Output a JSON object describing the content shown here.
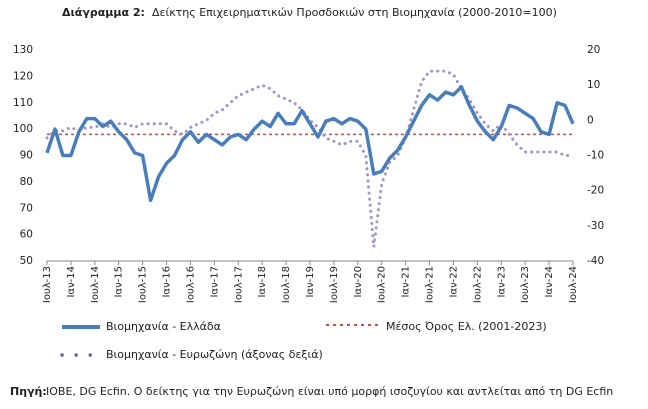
{
  "chart_data": {
    "type": "line",
    "title_label": "Διάγραμμα 2:",
    "title": "Δείκτης Επιχειρηματικών Προσδοκιών στη Βιομηχανία (2000-2010=100)",
    "categories": [
      "Ιουλ-13",
      null,
      null,
      "Ιαν-14",
      null,
      null,
      "Ιουλ-14",
      null,
      null,
      "Ιαν-15",
      null,
      null,
      "Ιουλ-15",
      null,
      null,
      "Ιαν-16",
      null,
      null,
      "Ιουλ-16",
      null,
      null,
      "Ιαν-17",
      null,
      null,
      "Ιουλ-17",
      null,
      null,
      "Ιαν-18",
      null,
      null,
      "Ιουλ-18",
      null,
      null,
      "Ιαν-19",
      null,
      null,
      "Ιουλ-19",
      null,
      null,
      "Ιαν-20",
      null,
      null,
      "Ιουλ-20",
      null,
      null,
      "Ιαν-21",
      null,
      null,
      "Ιουλ-21",
      null,
      null,
      "Ιαν-22",
      null,
      null,
      "Ιουλ-22",
      null,
      null,
      "Ιαν-23",
      null,
      null,
      "Ιουλ-23",
      null,
      null,
      "Ιαν-24",
      null,
      null,
      "Ιουλ-24"
    ],
    "series": [
      {
        "name": "Βιομηχανία  - Ελλάδα",
        "color": "#4a7ebb",
        "axis": "y",
        "values": [
          91,
          100,
          90,
          90,
          99,
          104,
          104,
          101,
          103,
          99,
          96,
          91,
          90,
          73,
          82,
          87,
          90,
          96,
          99,
          95,
          98,
          96,
          94,
          97,
          98,
          96,
          100,
          103,
          101,
          106,
          102,
          102,
          107,
          102,
          97,
          103,
          104,
          102,
          104,
          103,
          100,
          83,
          84,
          89,
          92,
          97,
          103,
          109,
          113,
          111,
          114,
          113,
          116,
          109,
          103,
          99,
          96,
          101,
          109,
          108,
          106,
          104,
          99,
          98,
          110,
          109,
          102
        ]
      },
      {
        "name": "Βιομηχανία - Ευρωζώνη (άξονας δεξιά)",
        "color": "#a593c9",
        "axis": "y2",
        "values": [
          -5,
          -3,
          -3,
          -2,
          -3,
          -2,
          -2,
          -1,
          -2,
          -1,
          -1,
          -2,
          -1,
          -1,
          -1,
          -1,
          -3,
          -4,
          -2,
          -1,
          0,
          2,
          3,
          5,
          7,
          8,
          9,
          10,
          9,
          7,
          6,
          5,
          3,
          0,
          -2,
          -5,
          -6,
          -7,
          -6,
          -6,
          -10,
          -36,
          -18,
          -12,
          -10,
          -5,
          3,
          11,
          14,
          14,
          14,
          13,
          9,
          6,
          2,
          -1,
          -3,
          -1,
          -4,
          -7,
          -9,
          -9,
          -9,
          -9,
          -9,
          -10,
          -10
        ]
      }
    ],
    "reference_line": {
      "name": "Μέσος Όρος Ελ. (2001-2023)",
      "color": "#c0504d",
      "value": 98
    },
    "ylim": [
      50,
      130
    ],
    "yticks": [
      50,
      60,
      70,
      80,
      90,
      100,
      110,
      120,
      130
    ],
    "y2lim": [
      -40,
      20
    ],
    "y2ticks": [
      -40,
      -30,
      -20,
      -10,
      0,
      10,
      20
    ],
    "source_label": "Πηγή:",
    "source": "ΙΟΒΕ, DG Ecfin. Ο δείκτης για την Ευρωζώνη είναι υπό μορφή ισοζυγίου και αντλείται από τη DG Ecfin"
  }
}
